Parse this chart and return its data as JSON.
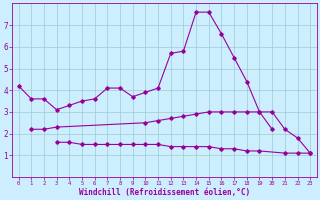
{
  "x": [
    0,
    1,
    2,
    3,
    4,
    5,
    6,
    7,
    8,
    9,
    10,
    11,
    12,
    13,
    14,
    15,
    16,
    17,
    18,
    19,
    20,
    21,
    22,
    23
  ],
  "line1": [
    4.2,
    3.6,
    3.6,
    3.1,
    3.3,
    3.5,
    3.6,
    4.1,
    4.1,
    3.7,
    3.9,
    4.1,
    5.7,
    5.8,
    7.6,
    7.6,
    6.6,
    5.5,
    4.4,
    3.0,
    3.0,
    2.2,
    1.8,
    1.1
  ],
  "line2": [
    null,
    2.2,
    2.2,
    2.3,
    null,
    null,
    null,
    null,
    null,
    null,
    2.5,
    2.6,
    2.7,
    2.8,
    2.9,
    3.0,
    3.0,
    3.0,
    3.0,
    3.0,
    2.2,
    null,
    null,
    null
  ],
  "line3": [
    null,
    null,
    null,
    1.6,
    1.6,
    1.5,
    1.5,
    1.5,
    1.5,
    1.5,
    1.5,
    1.5,
    1.4,
    1.4,
    1.4,
    1.4,
    1.3,
    1.3,
    1.2,
    1.2,
    null,
    1.1,
    1.1,
    1.1
  ],
  "bg_color": "#cceeff",
  "line_color": "#990099",
  "grid_color": "#99cccc",
  "xlabel": "Windchill (Refroidissement éolien,°C)",
  "ylim": [
    0,
    8
  ],
  "xlim": [
    -0.5,
    23.5
  ],
  "yticks": [
    1,
    2,
    3,
    4,
    5,
    6,
    7
  ],
  "xticks": [
    0,
    1,
    2,
    3,
    4,
    5,
    6,
    7,
    8,
    9,
    10,
    11,
    12,
    13,
    14,
    15,
    16,
    17,
    18,
    19,
    20,
    21,
    22,
    23
  ]
}
